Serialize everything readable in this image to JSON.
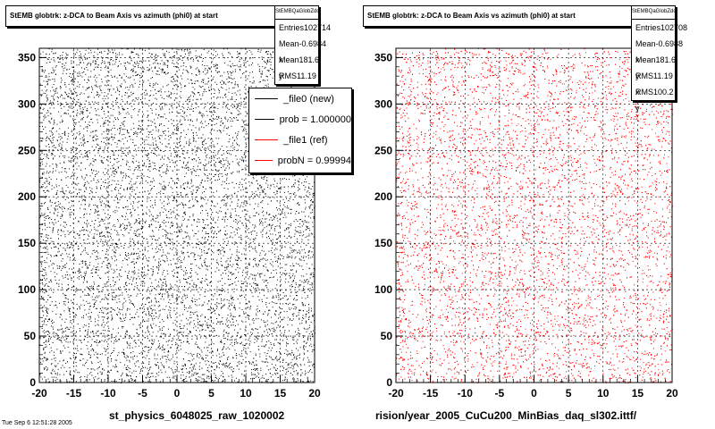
{
  "chart_data": [
    {
      "type": "scatter",
      "title": "StEMB globtrk: z-DCA to Beam Axis vs azimuth (phi0) at start",
      "stats_header": "StEMBQaGlobZdcaPhi0",
      "stats": [
        {
          "label": "Entries",
          "value": "102714"
        },
        {
          "label": "Mean x",
          "value": "-0.6984"
        },
        {
          "label": "Mean y",
          "value": "181.6"
        },
        {
          "label": "RMS x",
          "value": "11.19"
        }
      ],
      "xlim": [
        -20,
        20
      ],
      "ylim": [
        0,
        360
      ],
      "x_ticks": [
        "-20",
        "-15",
        "-10",
        "-5",
        "0",
        "5",
        "10",
        "15",
        "20"
      ],
      "y_ticks": [
        "0",
        "50",
        "100",
        "150",
        "200",
        "250",
        "300",
        "350"
      ],
      "grid": true,
      "color": "#000000",
      "density": "uniform",
      "bottom_label": "st_physics_6048025_raw_1020002",
      "legend": [
        {
          "label": "_file0 (new)",
          "color": "#000000"
        },
        {
          "label": "prob = 1.000000",
          "color": "#000000"
        },
        {
          "label": "_file1 (ref)",
          "color": "#ff0000"
        },
        {
          "label": "probN = 0.99994",
          "color": "#ff0000"
        }
      ]
    },
    {
      "type": "scatter",
      "title": "StEMB globtrk: z-DCA to Beam Axis vs azimuth (phi0) at start",
      "stats_header": "StEMBQaGlobZdcaPhi0",
      "stats": [
        {
          "label": "Entries",
          "value": "102708"
        },
        {
          "label": "Mean x",
          "value": "-0.6988"
        },
        {
          "label": "Mean y",
          "value": "181.6"
        },
        {
          "label": "RMS x",
          "value": "11.19"
        },
        {
          "label": "RMS y",
          "value": "100.2"
        }
      ],
      "xlim": [
        -20,
        20
      ],
      "ylim": [
        0,
        360
      ],
      "x_ticks": [
        "-20",
        "-15",
        "-10",
        "-5",
        "0",
        "5",
        "10",
        "15",
        "20"
      ],
      "y_ticks": [
        "0",
        "50",
        "100",
        "150",
        "200",
        "250",
        "300",
        "350"
      ],
      "grid": true,
      "color": "#ff0000",
      "density": "uniform",
      "bottom_label": "rision/year_2005_CuCu200_MinBias_daq_sl302.ittf/"
    }
  ],
  "footer_text": "Tue Sep  6 12:51:28 2005"
}
